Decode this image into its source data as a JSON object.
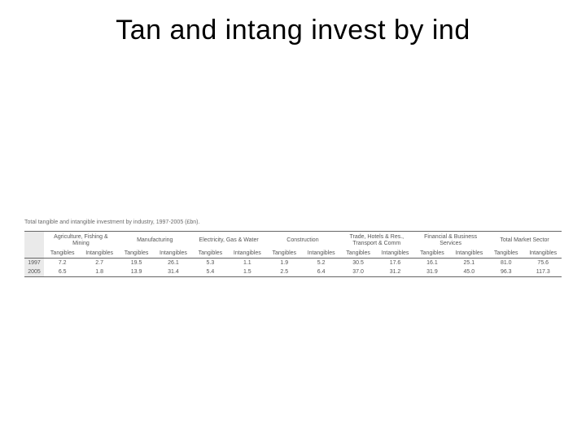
{
  "title": "Tan and intang invest by ind",
  "table": {
    "type": "table",
    "caption": "Total tangible and intangible investment by industry, 1997-2005 (£bn).",
    "background_color": "#ffffff",
    "year_col_bg": "#eaeaea",
    "border_color": "#666666",
    "text_color": "#555555",
    "caption_color": "#6b6b6b",
    "caption_fontsize": 7,
    "header_fontsize": 7,
    "cell_fontsize": 7,
    "groups": [
      "Agriculture, Fishing & Mining",
      "Manufacturing",
      "Electricity, Gas & Water",
      "Construction",
      "Trade, Hotels & Res., Transport & Comm",
      "Financial & Business Services",
      "Total Market Sector"
    ],
    "subcolumns": [
      "Tangibles",
      "Intangibles"
    ],
    "rows": [
      {
        "year": "1997",
        "values": [
          "7.2",
          "2.7",
          "19.5",
          "26.1",
          "5.3",
          "1.1",
          "1.9",
          "5.2",
          "30.5",
          "17.6",
          "16.1",
          "25.1",
          "81.0",
          "75.6"
        ]
      },
      {
        "year": "2005",
        "values": [
          "6.5",
          "1.8",
          "13.9",
          "31.4",
          "5.4",
          "1.5",
          "2.5",
          "6.4",
          "37.0",
          "31.2",
          "31.9",
          "45.0",
          "96.3",
          "117.3"
        ]
      }
    ]
  }
}
